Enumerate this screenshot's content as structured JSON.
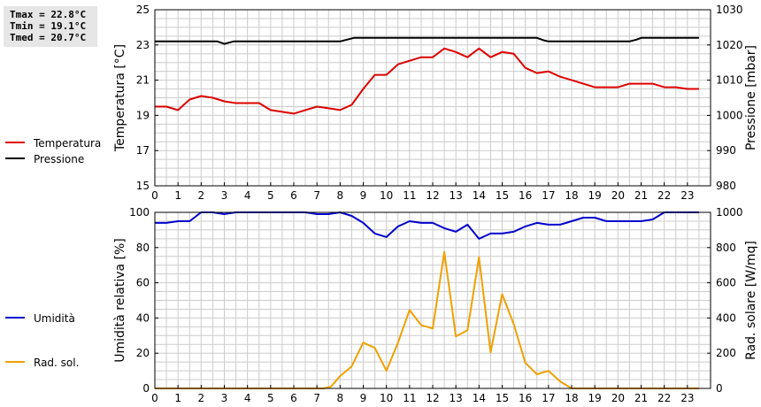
{
  "stats": {
    "tmax": "Tmax = 22.8°C",
    "tmin": "Tmin = 19.1°C",
    "tmed": "Tmed = 20.7°C"
  },
  "colors": {
    "temperature": "#dd0000",
    "pressure": "#000000",
    "humidity": "#0000cc",
    "solar": "#f0a000",
    "grid": "#cccccc"
  },
  "chart_data": [
    {
      "type": "line",
      "xlabel": "",
      "xlim": [
        0,
        24
      ],
      "x_ticks": [
        0,
        1,
        2,
        3,
        4,
        5,
        6,
        7,
        8,
        9,
        10,
        11,
        12,
        13,
        14,
        15,
        16,
        17,
        18,
        19,
        20,
        21,
        22,
        23
      ],
      "ylabel": "Temperatura [°C]",
      "ylim": [
        15,
        25
      ],
      "y_ticks": [
        15,
        17,
        19,
        21,
        23,
        25
      ],
      "y2label": "Pressione [mbar]",
      "y2lim": [
        980,
        1030
      ],
      "y2_ticks": [
        980,
        990,
        1000,
        1010,
        1020,
        1030
      ],
      "grid": true,
      "legend": "left",
      "series": [
        {
          "name": "Temperatura",
          "axis": "left",
          "x": [
            0,
            0.5,
            1,
            1.5,
            2,
            2.5,
            3,
            3.5,
            4,
            4.5,
            5,
            5.5,
            6,
            6.5,
            7,
            7.5,
            8,
            8.5,
            9,
            9.5,
            10,
            10.5,
            11,
            11.5,
            12,
            12.5,
            13,
            13.5,
            14,
            14.5,
            15,
            15.5,
            16,
            16.5,
            17,
            17.5,
            18,
            18.5,
            19,
            19.5,
            20,
            20.5,
            21,
            21.5,
            22,
            22.5,
            23,
            23.5
          ],
          "values": [
            19.5,
            19.5,
            19.3,
            19.9,
            20.1,
            20.0,
            19.8,
            19.7,
            19.7,
            19.7,
            19.3,
            19.2,
            19.1,
            19.3,
            19.5,
            19.4,
            19.3,
            19.6,
            20.5,
            21.3,
            21.3,
            21.9,
            22.1,
            22.3,
            22.3,
            22.8,
            22.6,
            22.3,
            22.8,
            22.3,
            22.6,
            22.5,
            21.7,
            21.4,
            21.5,
            21.2,
            21.0,
            20.8,
            20.6,
            20.6,
            20.6,
            20.8,
            20.8,
            20.8,
            20.6,
            20.6,
            20.5,
            20.5
          ]
        },
        {
          "name": "Pressione",
          "axis": "right",
          "x": [
            0,
            0.5,
            1,
            1.5,
            2,
            2.5,
            2.7,
            3,
            3.4,
            4,
            4.5,
            5,
            5.5,
            6,
            6.5,
            7,
            7.5,
            8,
            8.3,
            8.6,
            9,
            10,
            11,
            12,
            13,
            14,
            15,
            16,
            16.5,
            16.8,
            17,
            18,
            19,
            20,
            20.5,
            20.8,
            21,
            22,
            23,
            23.5
          ],
          "values": [
            1021,
            1021,
            1021,
            1021,
            1021,
            1021,
            1021,
            1020.3,
            1021,
            1021,
            1021,
            1021,
            1021,
            1021,
            1021,
            1021,
            1021,
            1021,
            1021.5,
            1022,
            1022,
            1022,
            1022,
            1022,
            1022,
            1022,
            1022,
            1022,
            1022,
            1021.3,
            1021,
            1021,
            1021,
            1021,
            1021,
            1021.5,
            1022,
            1022,
            1022,
            1022
          ]
        }
      ]
    },
    {
      "type": "line",
      "xlabel": "",
      "xlim": [
        0,
        24
      ],
      "x_ticks": [
        0,
        1,
        2,
        3,
        4,
        5,
        6,
        7,
        8,
        9,
        10,
        11,
        12,
        13,
        14,
        15,
        16,
        17,
        18,
        19,
        20,
        21,
        22,
        23
      ],
      "ylabel": "Umidità relativa [%]",
      "ylim": [
        0,
        100
      ],
      "y_ticks": [
        0,
        20,
        40,
        60,
        80,
        100
      ],
      "y2label": "Rad. solare [W/mq]",
      "y2lim": [
        0,
        1000
      ],
      "y2_ticks": [
        0,
        200,
        400,
        600,
        800,
        1000
      ],
      "grid": true,
      "legend": "left",
      "series": [
        {
          "name": "Umidità",
          "axis": "left",
          "x": [
            0,
            0.5,
            1,
            1.5,
            2,
            2.5,
            3,
            3.5,
            4,
            4.5,
            5,
            5.5,
            6,
            6.5,
            7,
            7.5,
            8,
            8.5,
            9,
            9.5,
            10,
            10.5,
            11,
            11.5,
            12,
            12.5,
            13,
            13.5,
            14,
            14.5,
            15,
            15.5,
            16,
            16.5,
            17,
            17.5,
            18,
            18.5,
            19,
            19.5,
            20,
            20.5,
            21,
            21.5,
            22,
            22.5,
            23,
            23.5
          ],
          "values": [
            94,
            94,
            95,
            95,
            100,
            100,
            99,
            100,
            100,
            100,
            100,
            100,
            100,
            100,
            99,
            99,
            100,
            98,
            94,
            88,
            86,
            92,
            95,
            94,
            94,
            91,
            89,
            93,
            85,
            88,
            88,
            89,
            92,
            94,
            93,
            93,
            95,
            97,
            97,
            95,
            95,
            95,
            95,
            96,
            100,
            100,
            100,
            100
          ]
        },
        {
          "name": "Rad. sol.",
          "axis": "right",
          "x": [
            0,
            1,
            2,
            3,
            4,
            5,
            6,
            7,
            7.3,
            7.6,
            8,
            8.5,
            9,
            9.5,
            10,
            10.5,
            11,
            11.5,
            12,
            12.5,
            13,
            13.5,
            14,
            14.5,
            15,
            15.5,
            16,
            16.5,
            17,
            17.5,
            18,
            18.5,
            19,
            20,
            21,
            22,
            23,
            23.5
          ],
          "values": [
            0,
            0,
            0,
            0,
            0,
            0,
            0,
            0,
            0,
            10,
            70,
            125,
            260,
            230,
            100,
            260,
            445,
            360,
            340,
            775,
            295,
            330,
            745,
            205,
            535,
            365,
            145,
            80,
            100,
            40,
            0,
            0,
            0,
            0,
            0,
            0,
            0,
            0
          ]
        }
      ]
    }
  ]
}
